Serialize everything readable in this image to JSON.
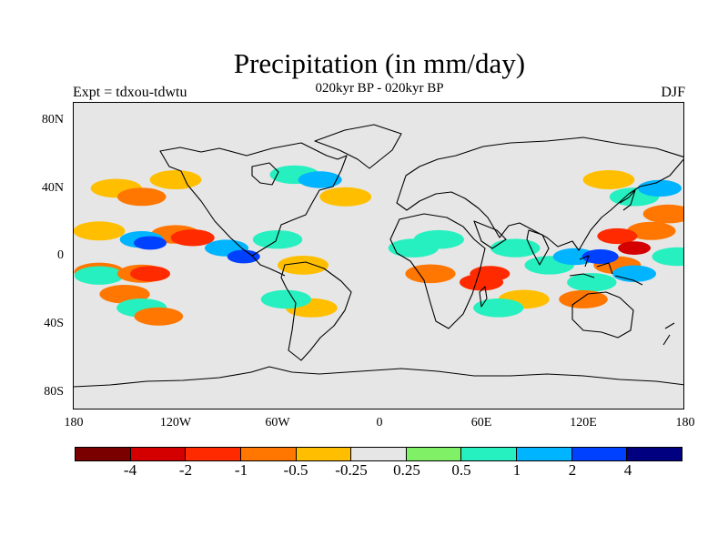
{
  "figure": {
    "title": "Precipitation (in mm/day)",
    "subtitle": "020kyr BP - 020kyr BP",
    "left_label": "Expt = tdxou-tdwtu",
    "right_label": "DJF"
  },
  "chart_data": {
    "type": "heatmap",
    "title": "Precipitation (in mm/day)",
    "subtitle": "020kyr BP - 020kyr BP",
    "projection": "cylindrical equidistant",
    "lon_range": [
      -180,
      180
    ],
    "lat_range": [
      -90,
      90
    ],
    "lat_tick_labels": [
      "80N",
      "40N",
      "0",
      "40S",
      "80S"
    ],
    "lat_tick_values": [
      80,
      40,
      0,
      -40,
      -80
    ],
    "lon_tick_labels": [
      "180",
      "120W",
      "60W",
      "0",
      "60E",
      "120E",
      "180"
    ],
    "lon_tick_values": [
      -180,
      -120,
      -60,
      0,
      60,
      120,
      180
    ],
    "colorbar": {
      "labels": [
        "-4",
        "-2",
        "-1",
        "-0.5",
        "-0.25",
        "0.25",
        "0.5",
        "1",
        "2",
        "4"
      ],
      "levels": [
        -4,
        -2,
        -1,
        -0.5,
        -0.25,
        0.25,
        0.5,
        1,
        2,
        4
      ],
      "colors": [
        "#7a0000",
        "#d40000",
        "#ff2a00",
        "#ff7700",
        "#ffbf00",
        "#e6e6e6",
        "#80f066",
        "#27f0c0",
        "#00b4ff",
        "#0040ff",
        "#000080"
      ]
    },
    "background_color": "#e6e6e6",
    "anomaly_blobs": [
      {
        "lon": -165,
        "lat": 15,
        "value": -0.4
      },
      {
        "lon": -140,
        "lat": 10,
        "value": 1.5
      },
      {
        "lon": -135,
        "lat": 8,
        "value": 3
      },
      {
        "lon": -120,
        "lat": 13,
        "value": -0.7
      },
      {
        "lon": -110,
        "lat": 11,
        "value": -1.5
      },
      {
        "lon": -165,
        "lat": -9,
        "value": -0.6
      },
      {
        "lon": -165,
        "lat": -11,
        "value": 0.7
      },
      {
        "lon": -140,
        "lat": -10,
        "value": -0.8
      },
      {
        "lon": -135,
        "lat": -10,
        "value": -2
      },
      {
        "lon": -150,
        "lat": -22,
        "value": -0.6
      },
      {
        "lon": -140,
        "lat": -30,
        "value": 0.6
      },
      {
        "lon": -130,
        "lat": -35,
        "value": -0.8
      },
      {
        "lon": -90,
        "lat": 5,
        "value": 1.5
      },
      {
        "lon": -80,
        "lat": 0,
        "value": 3
      },
      {
        "lon": -60,
        "lat": 10,
        "value": 0.7
      },
      {
        "lon": -45,
        "lat": -5,
        "value": -0.5
      },
      {
        "lon": -55,
        "lat": -25,
        "value": 0.6
      },
      {
        "lon": -40,
        "lat": -30,
        "value": -0.4
      },
      {
        "lon": -155,
        "lat": 40,
        "value": -0.5
      },
      {
        "lon": -140,
        "lat": 35,
        "value": -0.8
      },
      {
        "lon": -120,
        "lat": 45,
        "value": -0.4
      },
      {
        "lon": -50,
        "lat": 48,
        "value": 0.7
      },
      {
        "lon": -35,
        "lat": 45,
        "value": 1.5
      },
      {
        "lon": -20,
        "lat": 35,
        "value": -0.4
      },
      {
        "lon": 35,
        "lat": 10,
        "value": 0.6
      },
      {
        "lon": 30,
        "lat": -10,
        "value": -0.6
      },
      {
        "lon": 20,
        "lat": 5,
        "value": 0.6
      },
      {
        "lon": 60,
        "lat": -15,
        "value": -1.5
      },
      {
        "lon": 65,
        "lat": -10,
        "value": -2
      },
      {
        "lon": 80,
        "lat": 5,
        "value": 0.7
      },
      {
        "lon": 85,
        "lat": -25,
        "value": -0.5
      },
      {
        "lon": 70,
        "lat": -30,
        "value": 0.6
      },
      {
        "lon": 100,
        "lat": -5,
        "value": 0.7
      },
      {
        "lon": 115,
        "lat": 0,
        "value": 1.5
      },
      {
        "lon": 130,
        "lat": 0,
        "value": 2.5
      },
      {
        "lon": 125,
        "lat": -15,
        "value": 0.7
      },
      {
        "lon": 140,
        "lat": 12,
        "value": -2
      },
      {
        "lon": 150,
        "lat": 5,
        "value": -3
      },
      {
        "lon": 160,
        "lat": 15,
        "value": -0.8
      },
      {
        "lon": 140,
        "lat": -5,
        "value": -1
      },
      {
        "lon": 150,
        "lat": -10,
        "value": 1.5
      },
      {
        "lon": 120,
        "lat": -25,
        "value": -0.8
      },
      {
        "lon": 165,
        "lat": 40,
        "value": 1.5
      },
      {
        "lon": 150,
        "lat": 35,
        "value": 0.7
      },
      {
        "lon": 170,
        "lat": 25,
        "value": -0.6
      },
      {
        "lon": 135,
        "lat": 45,
        "value": -0.4
      },
      {
        "lon": 175,
        "lat": 0,
        "value": 0.7
      }
    ]
  }
}
